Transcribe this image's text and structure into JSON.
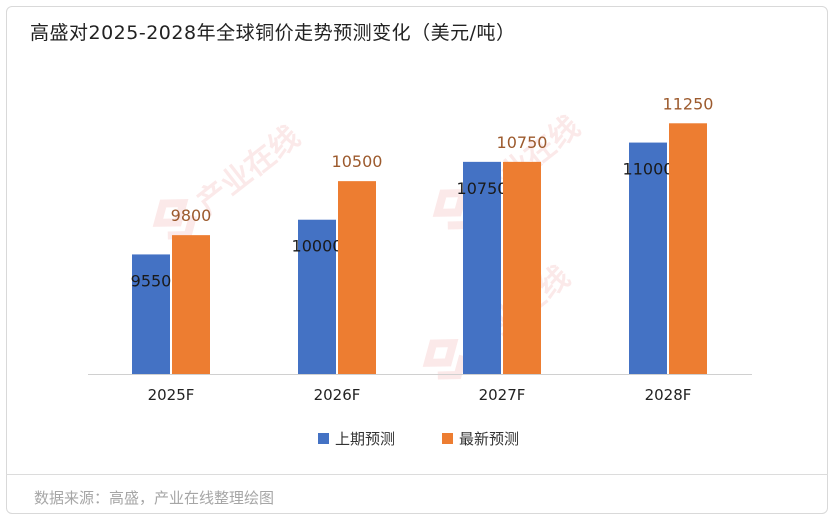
{
  "title": "高盛对2025-2028年全球铜价走势预测变化（美元/吨）",
  "source": "数据来源：高盛，产业在线整理绘图",
  "watermark": "产业在线",
  "colors": {
    "series_1": "#4472c4",
    "series_2": "#ed7d31",
    "label_series_2": "#9c5a2d",
    "label_series_1": "#1a1a1a",
    "axis": "#d0d0d0",
    "tick_text": "#222222"
  },
  "chart_data": {
    "type": "bar",
    "title": "高盛对2025-2028年全球铜价走势预测变化（美元/吨）",
    "categories": [
      "2025F",
      "2026F",
      "2027F",
      "2028F"
    ],
    "series": [
      {
        "name": "上期预测",
        "values": [
          9550,
          10000,
          10750,
          11000
        ]
      },
      {
        "name": "最新预测",
        "values": [
          9800,
          10500,
          10750,
          11250
        ]
      }
    ],
    "data_labels": true,
    "legend_position": "bottom",
    "grid": false,
    "ylim": [
      8000,
      11500
    ]
  }
}
